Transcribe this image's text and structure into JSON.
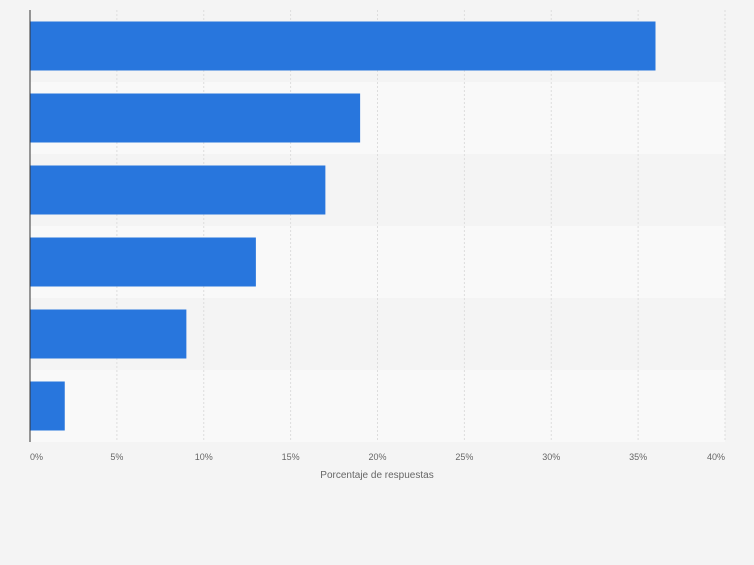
{
  "chart_data": {
    "type": "bar",
    "orientation": "horizontal",
    "categories": [
      "",
      "",
      "",
      "",
      "",
      ""
    ],
    "values": [
      36,
      19,
      17,
      13,
      9,
      2
    ],
    "title": "",
    "xlabel": "Porcentaje de respuestas",
    "ylabel": "",
    "xlim": [
      0,
      40
    ],
    "x_ticks": [
      0,
      5,
      10,
      15,
      20,
      25,
      30,
      35,
      40
    ],
    "x_tick_labels": [
      "0%",
      "5%",
      "10%",
      "15%",
      "20%",
      "25%",
      "30%",
      "35%",
      "40%"
    ],
    "grid": "vertical",
    "colors": {
      "bar": "#2876dd",
      "background": "#f4f4f4",
      "band_even": "#f4f4f4",
      "band_odd": "#f9f9f9",
      "grid": "#dddddd",
      "axis": "#333333",
      "tick_text": "#666666"
    }
  }
}
